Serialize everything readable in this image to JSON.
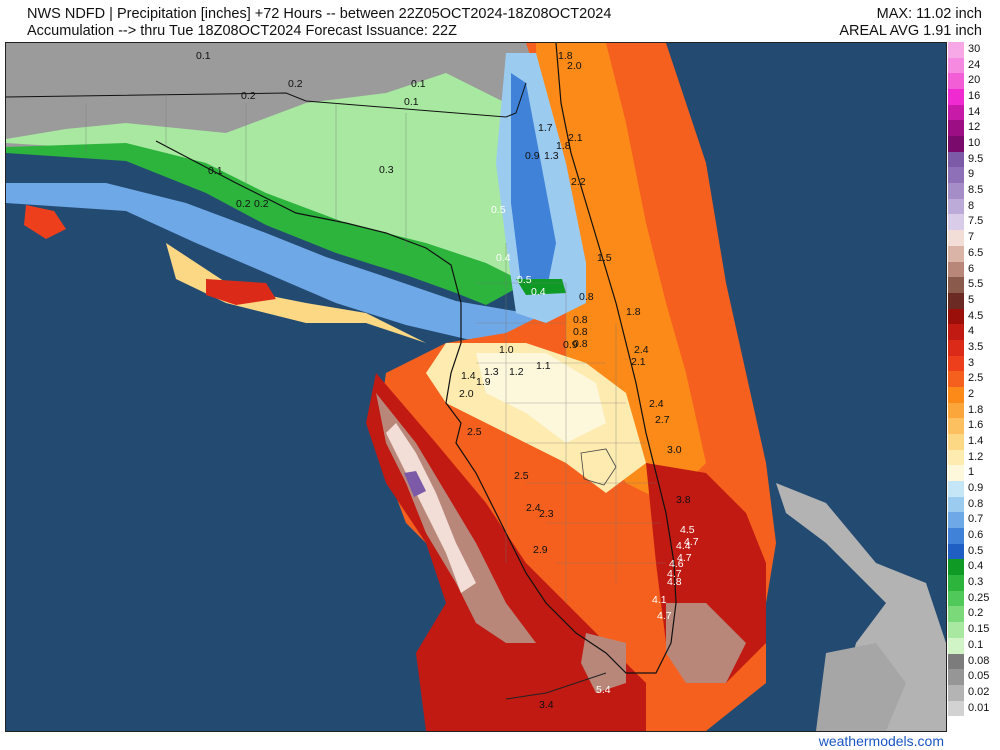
{
  "header": {
    "line1": "NWS NDFD | Precipitation [inches] +72 Hours -- between 22Z05OCT2024-18Z08OCT2024",
    "line2": "Accumulation --> thru Tue 18Z08OCT2024   Forecast Issuance: 22Z",
    "max": "MAX: 11.02 inch",
    "areal_avg": "AREAL AVG 1.91 inch"
  },
  "legend": [
    {
      "label": "30",
      "color": "#f7a8e7"
    },
    {
      "label": "24",
      "color": "#f58ae0"
    },
    {
      "label": "20",
      "color": "#f25ed6"
    },
    {
      "label": "16",
      "color": "#ee2ad0"
    },
    {
      "label": "14",
      "color": "#c81aa8"
    },
    {
      "label": "12",
      "color": "#9c0f84"
    },
    {
      "label": "10",
      "color": "#7a0a6b"
    },
    {
      "label": "9.5",
      "color": "#7d5aa8"
    },
    {
      "label": "9",
      "color": "#8e70b8"
    },
    {
      "label": "8.5",
      "color": "#a58dc8"
    },
    {
      "label": "8",
      "color": "#bcaad8"
    },
    {
      "label": "7.5",
      "color": "#d8cce8"
    },
    {
      "label": "7",
      "color": "#f2ded6"
    },
    {
      "label": "6.5",
      "color": "#dbb4a8"
    },
    {
      "label": "6",
      "color": "#b8877a"
    },
    {
      "label": "5.5",
      "color": "#8a5a4d"
    },
    {
      "label": "5",
      "color": "#6b2a24"
    },
    {
      "label": "4.5",
      "color": "#9a0f0a"
    },
    {
      "label": "4",
      "color": "#c01a12"
    },
    {
      "label": "3.5",
      "color": "#dc2a18"
    },
    {
      "label": "3",
      "color": "#ee3f1c"
    },
    {
      "label": "2.5",
      "color": "#f6601e"
    },
    {
      "label": "2",
      "color": "#fb8a18"
    },
    {
      "label": "1.8",
      "color": "#fba63a"
    },
    {
      "label": "1.6",
      "color": "#fcc060"
    },
    {
      "label": "1.4",
      "color": "#fdd884"
    },
    {
      "label": "1.2",
      "color": "#fdebb0"
    },
    {
      "label": "1",
      "color": "#fdf7dc"
    },
    {
      "label": "0.9",
      "color": "#c4e6f7"
    },
    {
      "label": "0.8",
      "color": "#9ccbf0"
    },
    {
      "label": "0.7",
      "color": "#6fa8e6"
    },
    {
      "label": "0.6",
      "color": "#3f82d8"
    },
    {
      "label": "0.5",
      "color": "#1f5fc4"
    },
    {
      "label": "0.4",
      "color": "#0f9a26"
    },
    {
      "label": "0.3",
      "color": "#2cb43c"
    },
    {
      "label": "0.25",
      "color": "#50c85a"
    },
    {
      "label": "0.2",
      "color": "#7cd97a"
    },
    {
      "label": "0.15",
      "color": "#a8e8a0"
    },
    {
      "label": "0.1",
      "color": "#d0f4c6"
    },
    {
      "label": "0.08",
      "color": "#7c7c7c"
    },
    {
      "label": "0.05",
      "color": "#969696"
    },
    {
      "label": "0.02",
      "color": "#b4b4b4"
    },
    {
      "label": "0.01",
      "color": "#d2d2d2"
    }
  ],
  "map_labels": [
    "0.1",
    "0.2",
    "0.2",
    "0.2",
    "0.1",
    "0.1",
    "0.1",
    "0.3",
    "0.2",
    "1.8",
    "2.0",
    "1.7",
    "2.1",
    "1.8",
    "0.9",
    "1.3",
    "2.2",
    "0.5",
    "1.5",
    "0.4",
    "0.5",
    "0.4",
    "0.8",
    "1.8",
    "0.8",
    "0.8",
    "0.8",
    "0.9",
    "2.4",
    "2.1",
    "1.0",
    "1.1",
    "1.2",
    "1.3",
    "1.4",
    "1.9",
    "2.0",
    "2.4",
    "2.7",
    "2.5",
    "3.0",
    "3.8",
    "2.5",
    "2.4",
    "2.3",
    "2.9",
    "4.5",
    "4.7",
    "4.4",
    "4.7",
    "4.6",
    "4.7",
    "4.8",
    "4.1",
    "4.7",
    "5.4",
    "3.4"
  ],
  "colors": {
    "ocean": "#234b72",
    "land_gray": "#c8c8c8",
    "bahamas": "#b3b3b3"
  },
  "footer": "weathermodels.com"
}
